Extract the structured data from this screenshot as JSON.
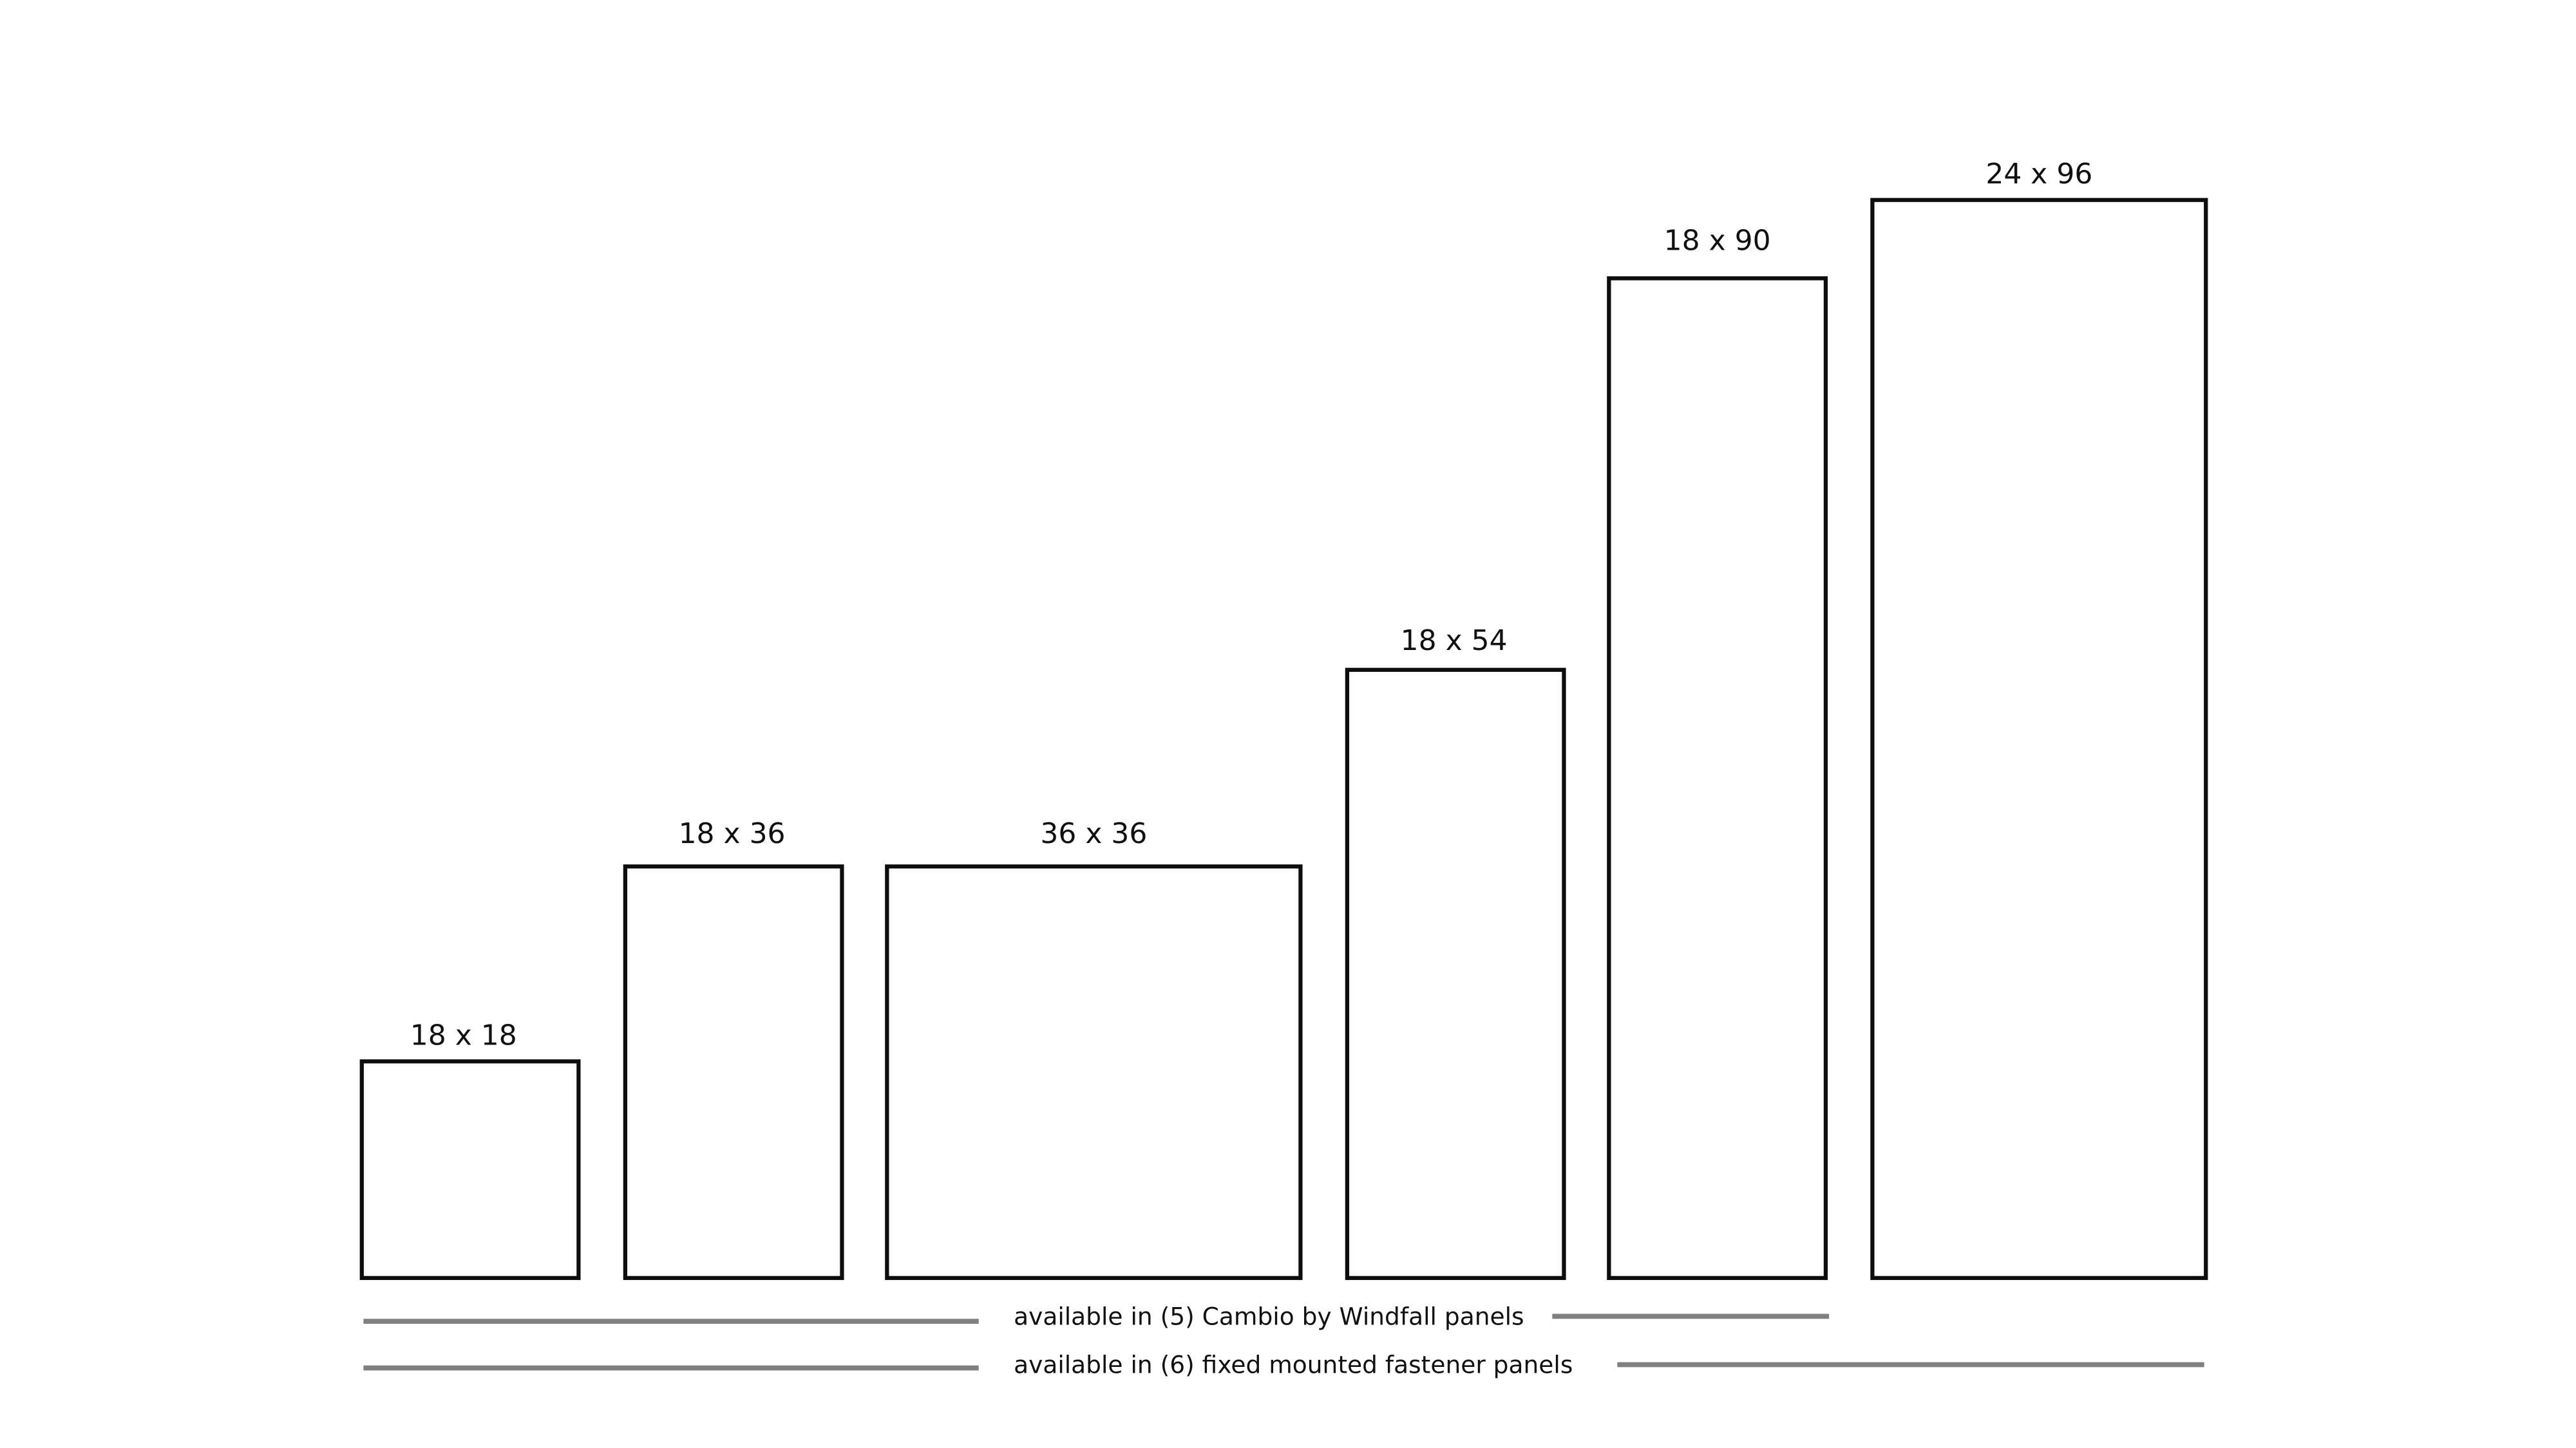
{
  "panels": [
    {
      "label": "18 x 18"
    },
    {
      "label": "18 x 36"
    },
    {
      "label": "36 x 36"
    },
    {
      "label": "18 x 54"
    },
    {
      "label": "18 x 90"
    },
    {
      "label": "24 x 96"
    }
  ],
  "captions": [
    "available in (5) Cambio by Windfall panels",
    "available in (6) fixed mounted fastener panels"
  ]
}
